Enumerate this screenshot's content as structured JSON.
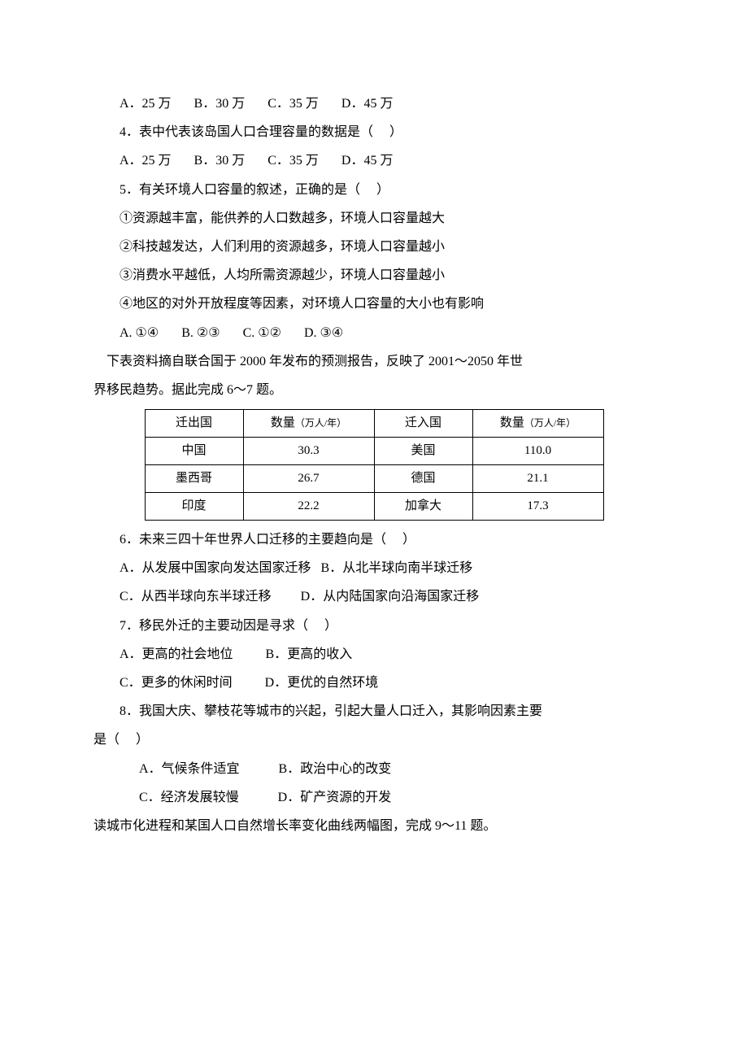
{
  "q3_options": "A．25 万       B．30 万       C．35 万       D．45 万",
  "q4": "4．表中代表该岛国人口合理容量的数据是（     ）",
  "q4_options": "A．25 万       B．30 万       C．35 万       D．45 万",
  "q5": "5．有关环境人口容量的叙述，正确的是（     ）",
  "q5_s1": "①资源越丰富，能供养的人口数越多，环境人口容量越大",
  "q5_s2": "②科技越发达，人们利用的资源越多，环境人口容量越小",
  "q5_s3": "③消费水平越低，人均所需资源越少，环境人口容量越小",
  "q5_s4": "④地区的对外开放程度等因素，对环境人口容量的大小也有影响",
  "q5_options": "A. ①④       B. ②③       C. ①②       D. ③④",
  "intro67_a": "    下表资料摘自联合国于 2000 年发布的预测报告，反映了 2001～2050 年世",
  "intro67_b": "界移民趋势。据此完成 6～7 题。",
  "table": {
    "header": {
      "out_country": "迁出国",
      "out_qty_a": "数量",
      "out_qty_b": "（万人/年）",
      "in_country": "迁入国",
      "in_qty_a": "数量",
      "in_qty_b": "（万人/年）"
    },
    "rows": [
      {
        "out_country": "中国",
        "out_qty": "30.3",
        "in_country": "美国",
        "in_qty": "110.0"
      },
      {
        "out_country": "墨西哥",
        "out_qty": "26.7",
        "in_country": "德国",
        "in_qty": "21.1"
      },
      {
        "out_country": "印度",
        "out_qty": "22.2",
        "in_country": "加拿大",
        "in_qty": "17.3"
      }
    ]
  },
  "q6": "6．未来三四十年世界人口迁移的主要趋向是（     ）",
  "q6_optA": "A．从发展中国家向发达国家迁移   B．从北半球向南半球迁移",
  "q6_optC": "C．从西半球向东半球迁移         D．从内陆国家向沿海国家迁移",
  "q7": "7．移民外迁的主要动因是寻求（     ）",
  "q7_optA": "A．更高的社会地位          B．更高的收入",
  "q7_optC": "C．更多的休闲时间          D．更优的自然环境",
  "q8_a": "8．我国大庆、攀枝花等城市的兴起，引起大量人口迁入，其影响因素主要",
  "q8_b": "是（     ）",
  "q8_optA": "A．气候条件适宜            B．政治中心的改变",
  "q8_optC": "C．经济发展较慢            D．矿产资源的开发",
  "intro911": "读城市化进程和某国人口自然增长率变化曲线两幅图，完成 9～11 题。"
}
